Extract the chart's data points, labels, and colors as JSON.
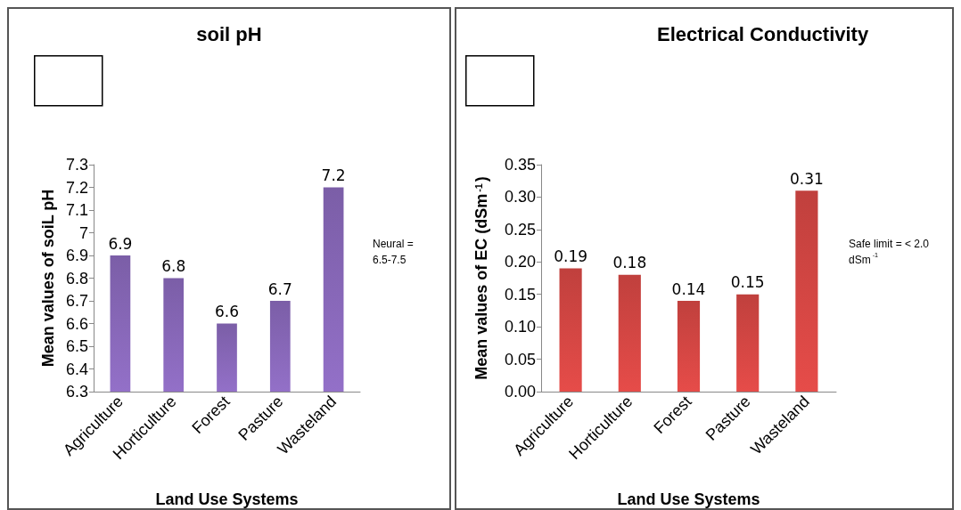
{
  "chart_data": [
    {
      "type": "bar",
      "title": "soil pH",
      "xlabel": "Land Use Systems",
      "ylabel": "Mean values of soiL pH",
      "categories": [
        "Agriculture",
        "Horticulture",
        "Forest",
        "Pasture",
        "Wasteland"
      ],
      "values": [
        6.9,
        6.8,
        6.6,
        6.7,
        7.2
      ],
      "color": "#7b5ea7",
      "ylim": [
        6.3,
        7.3
      ],
      "yticks": [
        6.3,
        6.4,
        6.5,
        6.6,
        6.7,
        6.8,
        6.9,
        7,
        7.1,
        7.2,
        7.3
      ],
      "data_labels": true,
      "annotations": [
        "Neural = 6.5-7.5"
      ]
    },
    {
      "type": "bar",
      "title": "Electrical Conductivity",
      "xlabel": "Land Use Systems",
      "ylabel": "Mean values of EC (dSm$^{-1}$)",
      "categories": [
        "Agriculture",
        "Horticulture",
        "Forest",
        "Pasture",
        "Wasteland"
      ],
      "values": [
        0.19,
        0.18,
        0.14,
        0.15,
        0.31
      ],
      "color": "#c0403d",
      "ylim": [
        0,
        0.35
      ],
      "yticks": [
        {
          "value": 0,
          "label": "0.00"
        },
        {
          "value": 0.05,
          "label": "0.05"
        },
        {
          "value": 0.1,
          "label": "0.10"
        },
        {
          "value": 0.15,
          "label": "0.15"
        },
        {
          "value": 0.2,
          "label": "0.20"
        },
        {
          "value": 0.25,
          "label": "0.25"
        },
        {
          "value": 0.3,
          "label": "0.30"
        },
        {
          "value": 0.35,
          "label": "0.35"
        }
      ],
      "data_labels": true,
      "annotations": [
        "Safe limit = < 2.0 dSm$^{-1}$"
      ]
    }
  ]
}
